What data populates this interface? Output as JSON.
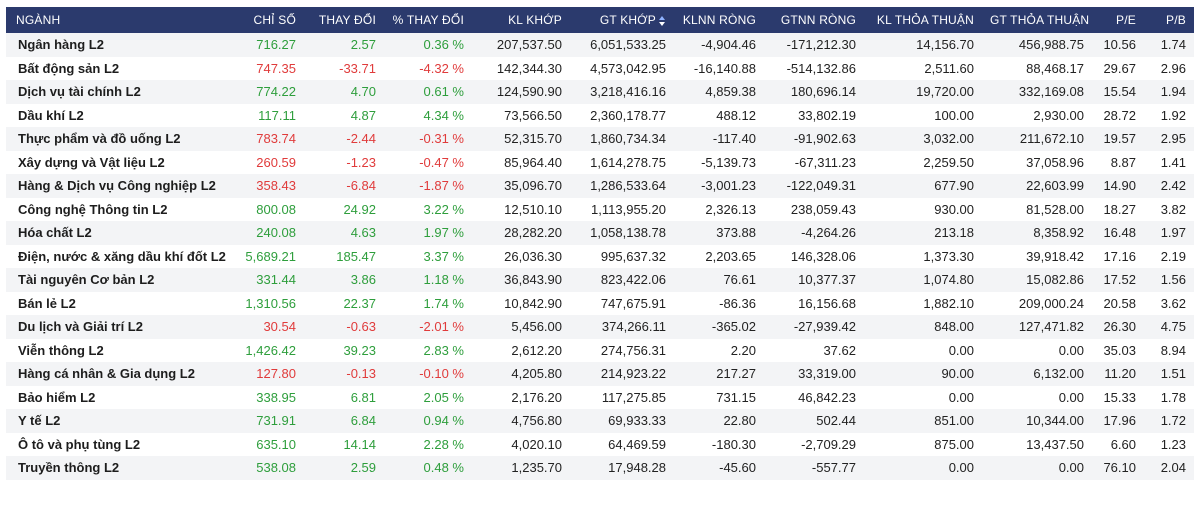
{
  "colors": {
    "header_bg": "#2b3a6d",
    "up": "#2e9e3c",
    "down": "#e03b3b",
    "row_alt": "#f3f4f6"
  },
  "table": {
    "headers": [
      "NGÀNH",
      "CHỈ SỐ",
      "THAY ĐỔI",
      "% THAY ĐỔI",
      "KL KHỚP",
      "GT KHỚP",
      "KLNN RÒNG",
      "GTNN RÒNG",
      "KL THỎA THUẬN",
      "GT THỎA THUẬN",
      "P/E",
      "P/B"
    ],
    "sort_icon": "sort-icon",
    "rows": [
      {
        "trend": "up",
        "cells": [
          "Ngân hàng L2",
          "716.27",
          "2.57",
          "0.36 %",
          "207,537.50",
          "6,051,533.25",
          "-4,904.46",
          "-171,212.30",
          "14,156.70",
          "456,988.75",
          "10.56",
          "1.74"
        ]
      },
      {
        "trend": "down",
        "cells": [
          "Bất động sản L2",
          "747.35",
          "-33.71",
          "-4.32 %",
          "142,344.30",
          "4,573,042.95",
          "-16,140.88",
          "-514,132.86",
          "2,511.60",
          "88,468.17",
          "29.67",
          "2.96"
        ]
      },
      {
        "trend": "up",
        "cells": [
          "Dịch vụ tài chính L2",
          "774.22",
          "4.70",
          "0.61 %",
          "124,590.90",
          "3,218,416.16",
          "4,859.38",
          "180,696.14",
          "19,720.00",
          "332,169.08",
          "15.54",
          "1.94"
        ]
      },
      {
        "trend": "up",
        "cells": [
          "Dầu khí L2",
          "117.11",
          "4.87",
          "4.34 %",
          "73,566.50",
          "2,360,178.77",
          "488.12",
          "33,802.19",
          "100.00",
          "2,930.00",
          "28.72",
          "1.92"
        ]
      },
      {
        "trend": "down",
        "cells": [
          "Thực phẩm và đồ uống L2",
          "783.74",
          "-2.44",
          "-0.31 %",
          "52,315.70",
          "1,860,734.34",
          "-117.40",
          "-91,902.63",
          "3,032.00",
          "211,672.10",
          "19.57",
          "2.95"
        ]
      },
      {
        "trend": "down",
        "cells": [
          "Xây dựng và Vật liệu L2",
          "260.59",
          "-1.23",
          "-0.47 %",
          "85,964.40",
          "1,614,278.75",
          "-5,139.73",
          "-67,311.23",
          "2,259.50",
          "37,058.96",
          "8.87",
          "1.41"
        ]
      },
      {
        "trend": "down",
        "cells": [
          "Hàng & Dịch vụ Công nghiệp L2",
          "358.43",
          "-6.84",
          "-1.87 %",
          "35,096.70",
          "1,286,533.64",
          "-3,001.23",
          "-122,049.31",
          "677.90",
          "22,603.99",
          "14.90",
          "2.42"
        ]
      },
      {
        "trend": "up",
        "cells": [
          "Công nghệ Thông tin L2",
          "800.08",
          "24.92",
          "3.22 %",
          "12,510.10",
          "1,113,955.20",
          "2,326.13",
          "238,059.43",
          "930.00",
          "81,528.00",
          "18.27",
          "3.82"
        ]
      },
      {
        "trend": "up",
        "cells": [
          "Hóa chất L2",
          "240.08",
          "4.63",
          "1.97 %",
          "28,282.20",
          "1,058,138.78",
          "373.88",
          "-4,264.26",
          "213.18",
          "8,358.92",
          "16.48",
          "1.97"
        ]
      },
      {
        "trend": "up",
        "cells": [
          "Điện, nước & xăng dầu khí đốt L2",
          "5,689.21",
          "185.47",
          "3.37 %",
          "26,036.30",
          "995,637.32",
          "2,203.65",
          "146,328.06",
          "1,373.30",
          "39,918.42",
          "17.16",
          "2.19"
        ]
      },
      {
        "trend": "up",
        "cells": [
          "Tài nguyên Cơ bản L2",
          "331.44",
          "3.86",
          "1.18 %",
          "36,843.90",
          "823,422.06",
          "76.61",
          "10,377.37",
          "1,074.80",
          "15,082.86",
          "17.52",
          "1.56"
        ]
      },
      {
        "trend": "up",
        "cells": [
          "Bán lẻ L2",
          "1,310.56",
          "22.37",
          "1.74 %",
          "10,842.90",
          "747,675.91",
          "-86.36",
          "16,156.68",
          "1,882.10",
          "209,000.24",
          "20.58",
          "3.62"
        ]
      },
      {
        "trend": "down",
        "cells": [
          "Du lịch và Giải trí L2",
          "30.54",
          "-0.63",
          "-2.01 %",
          "5,456.00",
          "374,266.11",
          "-365.02",
          "-27,939.42",
          "848.00",
          "127,471.82",
          "26.30",
          "4.75"
        ]
      },
      {
        "trend": "up",
        "cells": [
          "Viễn thông L2",
          "1,426.42",
          "39.23",
          "2.83 %",
          "2,612.20",
          "274,756.31",
          "2.20",
          "37.62",
          "0.00",
          "0.00",
          "35.03",
          "8.94"
        ]
      },
      {
        "trend": "down",
        "cells": [
          "Hàng cá nhân & Gia dụng L2",
          "127.80",
          "-0.13",
          "-0.10 %",
          "4,205.80",
          "214,923.22",
          "217.27",
          "33,319.00",
          "90.00",
          "6,132.00",
          "11.20",
          "1.51"
        ]
      },
      {
        "trend": "up",
        "cells": [
          "Bảo hiểm L2",
          "338.95",
          "6.81",
          "2.05 %",
          "2,176.20",
          "117,275.85",
          "731.15",
          "46,842.23",
          "0.00",
          "0.00",
          "15.33",
          "1.78"
        ]
      },
      {
        "trend": "up",
        "cells": [
          "Y tế L2",
          "731.91",
          "6.84",
          "0.94 %",
          "4,756.80",
          "69,933.33",
          "22.80",
          "502.44",
          "851.00",
          "10,344.00",
          "17.96",
          "1.72"
        ]
      },
      {
        "trend": "up",
        "cells": [
          "Ô tô và phụ tùng L2",
          "635.10",
          "14.14",
          "2.28 %",
          "4,020.10",
          "64,469.59",
          "-180.30",
          "-2,709.29",
          "875.00",
          "13,437.50",
          "6.60",
          "1.23"
        ]
      },
      {
        "trend": "up",
        "cells": [
          "Truyền thông L2",
          "538.08",
          "2.59",
          "0.48 %",
          "1,235.70",
          "17,948.28",
          "-45.60",
          "-557.77",
          "0.00",
          "0.00",
          "76.10",
          "2.04"
        ]
      }
    ]
  }
}
